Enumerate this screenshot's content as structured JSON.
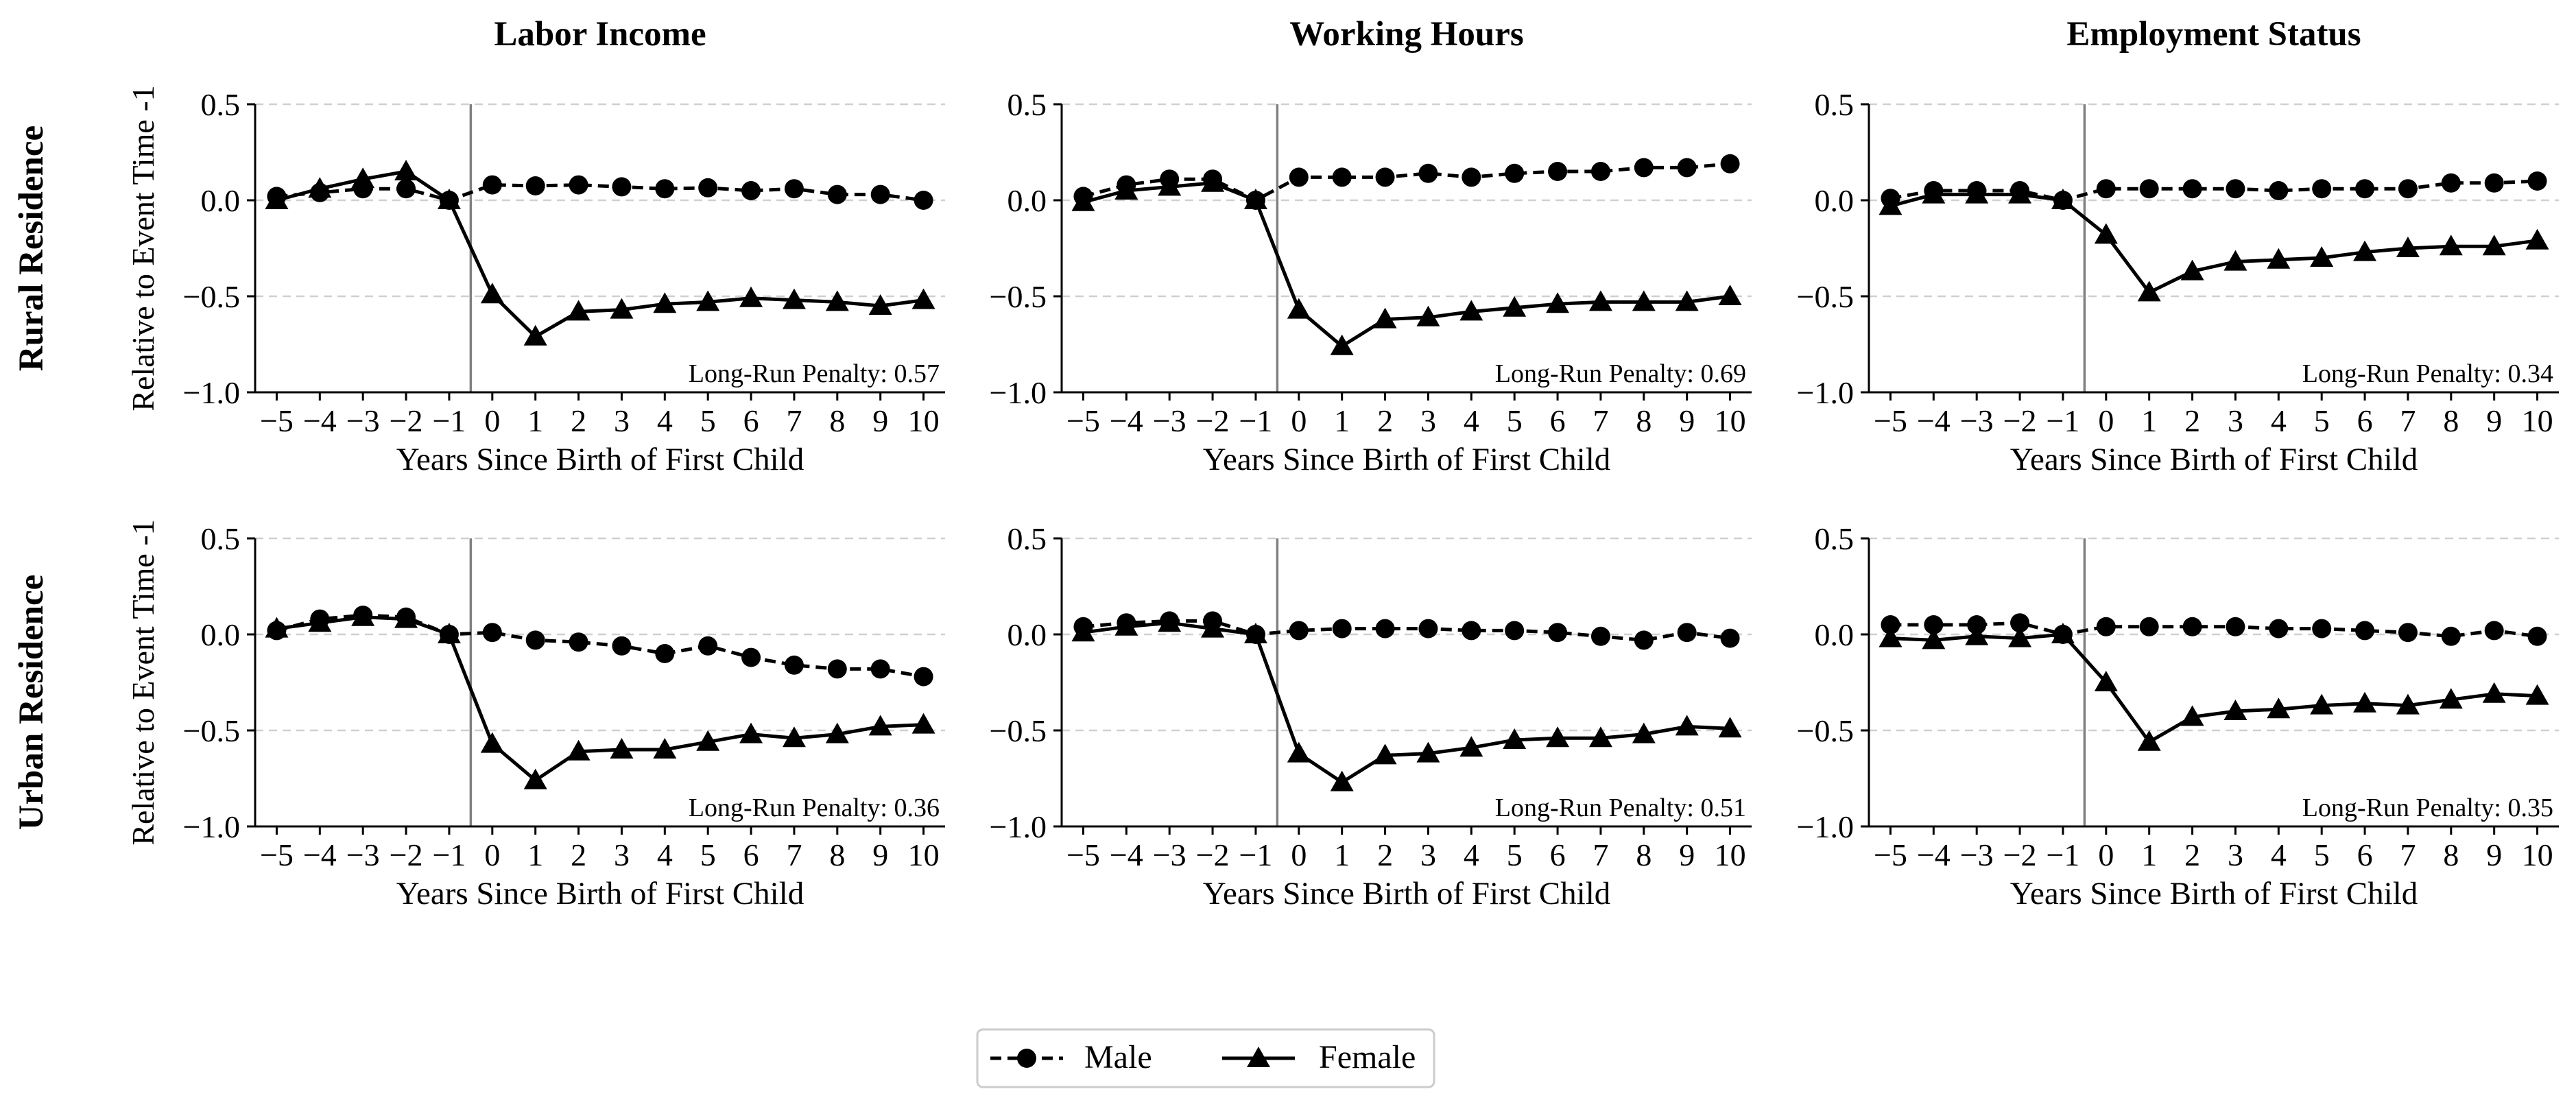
{
  "figure": {
    "column_titles": [
      "Labor Income",
      "Working Hours",
      "Employment Status"
    ],
    "row_titles": [
      "Rural Residence",
      "Urban Residence"
    ],
    "legend": {
      "position": "bottom-center",
      "entries": [
        {
          "label": "Male",
          "marker": "circle",
          "linestyle": "dashed"
        },
        {
          "label": "Female",
          "marker": "triangle",
          "linestyle": "solid"
        }
      ]
    }
  },
  "chart_data": [
    {
      "type": "line",
      "row": "Rural Residence",
      "title": "Labor Income",
      "xlabel": "Years Since Birth of First Child",
      "ylabel": "Relative to Event Time -1",
      "x": [
        -5,
        -4,
        -3,
        -2,
        -1,
        0,
        1,
        2,
        3,
        4,
        5,
        6,
        7,
        8,
        9,
        10
      ],
      "xticks": [
        "−5",
        "−4",
        "−3",
        "−2",
        "−1",
        "0",
        "1",
        "2",
        "3",
        "4",
        "5",
        "6",
        "7",
        "8",
        "9",
        "10"
      ],
      "ylim": [
        -1.0,
        0.5
      ],
      "yticks": [
        "−1.0",
        "−0.5",
        "0.0",
        "0.5"
      ],
      "yticks_values": [
        -1.0,
        -0.5,
        0.0,
        0.5
      ],
      "grid": "horizontal dashed",
      "event_line_x": -0.5,
      "annotation": "Long-Run Penalty: 0.57",
      "series": [
        {
          "name": "Male",
          "values": [
            0.02,
            0.04,
            0.06,
            0.06,
            0.0,
            0.08,
            0.075,
            0.08,
            0.07,
            0.06,
            0.065,
            0.05,
            0.06,
            0.03,
            0.03,
            0.0
          ]
        },
        {
          "name": "Female",
          "values": [
            0.0,
            0.06,
            0.11,
            0.15,
            0.0,
            -0.49,
            -0.71,
            -0.58,
            -0.57,
            -0.54,
            -0.53,
            -0.51,
            -0.52,
            -0.53,
            -0.55,
            -0.52
          ]
        }
      ]
    },
    {
      "type": "line",
      "row": "Rural Residence",
      "title": "Working Hours",
      "xlabel": "Years Since Birth of First Child",
      "ylabel": "",
      "x": [
        -5,
        -4,
        -3,
        -2,
        -1,
        0,
        1,
        2,
        3,
        4,
        5,
        6,
        7,
        8,
        9,
        10
      ],
      "xticks": [
        "−5",
        "−4",
        "−3",
        "−2",
        "−1",
        "0",
        "1",
        "2",
        "3",
        "4",
        "5",
        "6",
        "7",
        "8",
        "9",
        "10"
      ],
      "ylim": [
        -1.0,
        0.5
      ],
      "yticks": [
        "−1.0",
        "−0.5",
        "0.0",
        "0.5"
      ],
      "yticks_values": [
        -1.0,
        -0.5,
        0.0,
        0.5
      ],
      "grid": "horizontal dashed",
      "event_line_x": -0.5,
      "annotation": "Long-Run Penalty: 0.69",
      "series": [
        {
          "name": "Male",
          "values": [
            0.02,
            0.08,
            0.11,
            0.11,
            0.0,
            0.12,
            0.12,
            0.12,
            0.14,
            0.12,
            0.14,
            0.15,
            0.15,
            0.17,
            0.17,
            0.19
          ]
        },
        {
          "name": "Female",
          "values": [
            -0.01,
            0.05,
            0.07,
            0.09,
            0.0,
            -0.57,
            -0.76,
            -0.62,
            -0.61,
            -0.58,
            -0.56,
            -0.54,
            -0.53,
            -0.53,
            -0.53,
            -0.5
          ]
        }
      ]
    },
    {
      "type": "line",
      "row": "Rural Residence",
      "title": "Employment Status",
      "xlabel": "Years Since Birth of First Child",
      "ylabel": "",
      "x": [
        -5,
        -4,
        -3,
        -2,
        -1,
        0,
        1,
        2,
        3,
        4,
        5,
        6,
        7,
        8,
        9,
        10
      ],
      "xticks": [
        "−5",
        "−4",
        "−3",
        "−2",
        "−1",
        "0",
        "1",
        "2",
        "3",
        "4",
        "5",
        "6",
        "7",
        "8",
        "9",
        "10"
      ],
      "ylim": [
        -1.0,
        0.5
      ],
      "yticks": [
        "−1.0",
        "−0.5",
        "0.0",
        "0.5"
      ],
      "yticks_values": [
        -1.0,
        -0.5,
        0.0,
        0.5
      ],
      "grid": "horizontal dashed",
      "event_line_x": -0.5,
      "annotation": "Long-Run Penalty: 0.34",
      "series": [
        {
          "name": "Male",
          "values": [
            0.01,
            0.05,
            0.05,
            0.05,
            0.0,
            0.06,
            0.06,
            0.06,
            0.06,
            0.05,
            0.06,
            0.06,
            0.06,
            0.09,
            0.09,
            0.1
          ]
        },
        {
          "name": "Female",
          "values": [
            -0.03,
            0.03,
            0.03,
            0.03,
            0.0,
            -0.18,
            -0.48,
            -0.37,
            -0.32,
            -0.31,
            -0.3,
            -0.27,
            -0.25,
            -0.24,
            -0.24,
            -0.21
          ]
        }
      ]
    },
    {
      "type": "line",
      "row": "Urban Residence",
      "title": "Labor Income",
      "xlabel": "Years Since Birth of First Child",
      "ylabel": "Relative to Event Time -1",
      "x": [
        -5,
        -4,
        -3,
        -2,
        -1,
        0,
        1,
        2,
        3,
        4,
        5,
        6,
        7,
        8,
        9,
        10
      ],
      "xticks": [
        "−5",
        "−4",
        "−3",
        "−2",
        "−1",
        "0",
        "1",
        "2",
        "3",
        "4",
        "5",
        "6",
        "7",
        "8",
        "9",
        "10"
      ],
      "ylim": [
        -1.0,
        0.5
      ],
      "yticks": [
        "−1.0",
        "−0.5",
        "0.0",
        "0.5"
      ],
      "yticks_values": [
        -1.0,
        -0.5,
        0.0,
        0.5
      ],
      "grid": "horizontal dashed",
      "event_line_x": -0.5,
      "annotation": "Long-Run Penalty: 0.36",
      "series": [
        {
          "name": "Male",
          "values": [
            0.02,
            0.08,
            0.1,
            0.09,
            0.0,
            0.01,
            -0.03,
            -0.04,
            -0.06,
            -0.1,
            -0.06,
            -0.12,
            -0.16,
            -0.18,
            -0.18,
            -0.22
          ]
        },
        {
          "name": "Female",
          "values": [
            0.03,
            0.06,
            0.09,
            0.08,
            0.0,
            -0.57,
            -0.76,
            -0.61,
            -0.6,
            -0.6,
            -0.56,
            -0.52,
            -0.54,
            -0.52,
            -0.48,
            -0.47
          ]
        }
      ]
    },
    {
      "type": "line",
      "row": "Urban Residence",
      "title": "Working Hours",
      "xlabel": "Years Since Birth of First Child",
      "ylabel": "",
      "x": [
        -5,
        -4,
        -3,
        -2,
        -1,
        0,
        1,
        2,
        3,
        4,
        5,
        6,
        7,
        8,
        9,
        10
      ],
      "xticks": [
        "−5",
        "−4",
        "−3",
        "−2",
        "−1",
        "0",
        "1",
        "2",
        "3",
        "4",
        "5",
        "6",
        "7",
        "8",
        "9",
        "10"
      ],
      "ylim": [
        -1.0,
        0.5
      ],
      "yticks": [
        "−1.0",
        "−0.5",
        "0.0",
        "0.5"
      ],
      "yticks_values": [
        -1.0,
        -0.5,
        0.0,
        0.5
      ],
      "grid": "horizontal dashed",
      "event_line_x": -0.5,
      "annotation": "Long-Run Penalty: 0.51",
      "series": [
        {
          "name": "Male",
          "values": [
            0.04,
            0.06,
            0.07,
            0.07,
            0.0,
            0.02,
            0.03,
            0.03,
            0.03,
            0.02,
            0.02,
            0.01,
            -0.01,
            -0.03,
            0.01,
            -0.02
          ]
        },
        {
          "name": "Female",
          "values": [
            0.01,
            0.04,
            0.06,
            0.03,
            0.0,
            -0.62,
            -0.77,
            -0.63,
            -0.62,
            -0.59,
            -0.55,
            -0.54,
            -0.54,
            -0.52,
            -0.48,
            -0.49
          ]
        }
      ]
    },
    {
      "type": "line",
      "row": "Urban Residence",
      "title": "Employment Status",
      "xlabel": "Years Since Birth of First Child",
      "ylabel": "",
      "x": [
        -5,
        -4,
        -3,
        -2,
        -1,
        0,
        1,
        2,
        3,
        4,
        5,
        6,
        7,
        8,
        9,
        10
      ],
      "xticks": [
        "−5",
        "−4",
        "−3",
        "−2",
        "−1",
        "0",
        "1",
        "2",
        "3",
        "4",
        "5",
        "6",
        "7",
        "8",
        "9",
        "10"
      ],
      "ylim": [
        -1.0,
        0.5
      ],
      "yticks": [
        "−1.0",
        "−0.5",
        "0.0",
        "0.5"
      ],
      "yticks_values": [
        -1.0,
        -0.5,
        0.0,
        0.5
      ],
      "grid": "horizontal dashed",
      "event_line_x": -0.5,
      "annotation": "Long-Run Penalty: 0.35",
      "series": [
        {
          "name": "Male",
          "values": [
            0.05,
            0.05,
            0.05,
            0.06,
            0.0,
            0.04,
            0.04,
            0.04,
            0.04,
            0.03,
            0.03,
            0.02,
            0.01,
            -0.01,
            0.02,
            -0.01
          ]
        },
        {
          "name": "Female",
          "values": [
            -0.02,
            -0.03,
            -0.01,
            -0.02,
            0.0,
            -0.25,
            -0.56,
            -0.43,
            -0.4,
            -0.39,
            -0.37,
            -0.36,
            -0.37,
            -0.34,
            -0.31,
            -0.32
          ]
        }
      ]
    }
  ]
}
